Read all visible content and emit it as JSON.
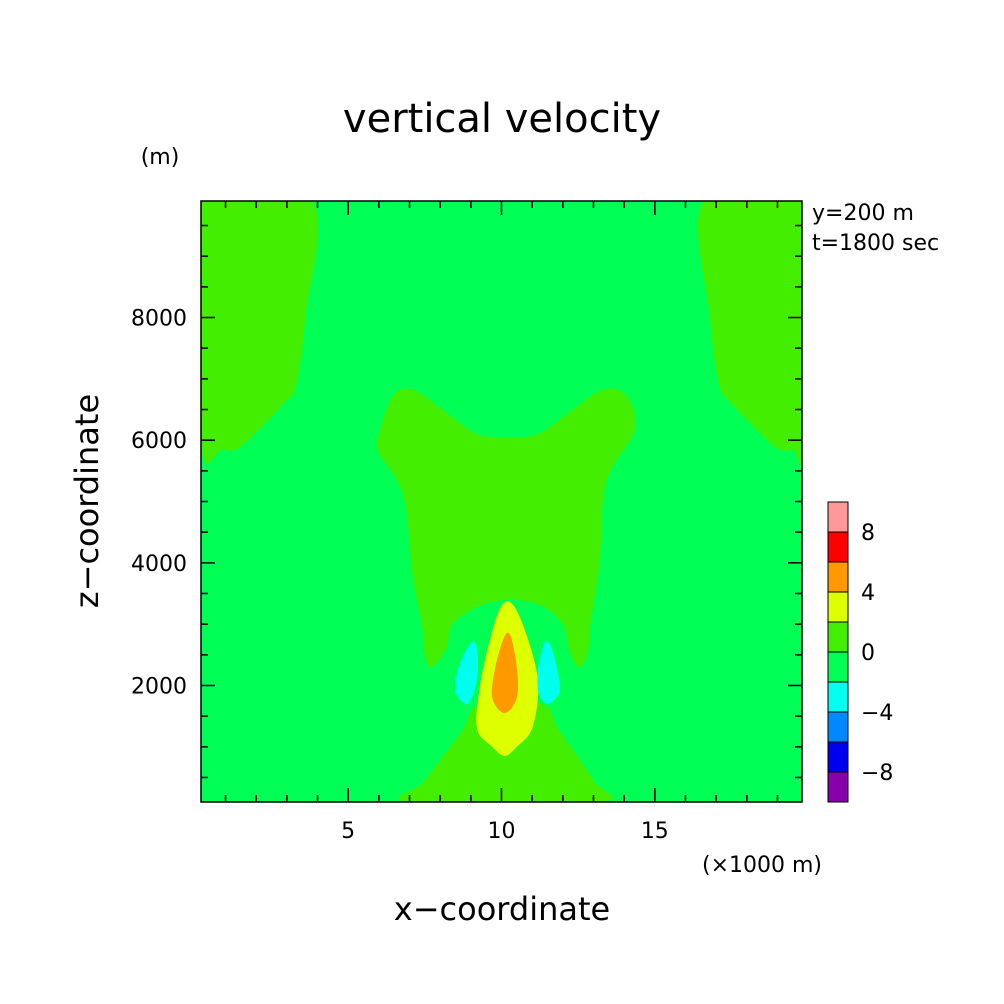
{
  "chart_data": {
    "type": "filled-contour",
    "title": "vertical velocity",
    "xlabel": "x−coordinate",
    "ylabel": "z−coordinate",
    "x_unit": "(×1000 m)",
    "y_unit": "(m)",
    "info_lines": [
      "y=200 m",
      "t=1800 sec"
    ],
    "xlim": [
      0.2,
      19.8
    ],
    "ylim": [
      100,
      9900
    ],
    "x_ticks": [
      {
        "value": 5,
        "label": "5"
      },
      {
        "value": 10,
        "label": "10"
      },
      {
        "value": 15,
        "label": "15"
      }
    ],
    "y_ticks": [
      {
        "value": 2000,
        "label": "2000"
      },
      {
        "value": 4000,
        "label": "4000"
      },
      {
        "value": 6000,
        "label": "6000"
      },
      {
        "value": 8000,
        "label": "8000"
      }
    ],
    "colorbar": {
      "levels": [
        -10,
        -8,
        -6,
        -4,
        -2,
        0,
        2,
        4,
        6,
        8,
        10
      ],
      "colors": [
        "#8800aa",
        "#0000ee",
        "#0088ff",
        "#00ffee",
        "#00ff55",
        "#44ee00",
        "#ddff00",
        "#ff9900",
        "#ff0000",
        "#ff9999"
      ],
      "labels": [
        {
          "value": 8,
          "label": "8"
        },
        {
          "value": 4,
          "label": "4"
        },
        {
          "value": 0,
          "label": "0"
        },
        {
          "value": -4,
          "label": "−4"
        },
        {
          "value": -8,
          "label": "−8"
        }
      ]
    },
    "contour_regions": [
      {
        "name": "background",
        "level": "-2 to 0",
        "color": "#00ff55",
        "rect": true
      },
      {
        "name": "upper-left-lobe",
        "level": "0 to 2",
        "color": "#44ee00",
        "points": [
          [
            0.2,
            9900
          ],
          [
            3.8,
            9900
          ],
          [
            3.6,
            8000
          ],
          [
            3.3,
            6900
          ],
          [
            2.9,
            6600
          ],
          [
            1.5,
            5900
          ],
          [
            0.9,
            5850
          ],
          [
            0.2,
            5950
          ]
        ]
      },
      {
        "name": "upper-right-lobe",
        "level": "0 to 2",
        "color": "#44ee00",
        "points": [
          [
            19.8,
            9900
          ],
          [
            16.6,
            9900
          ],
          [
            16.8,
            8000
          ],
          [
            17.1,
            6900
          ],
          [
            17.5,
            6600
          ],
          [
            18.9,
            5900
          ],
          [
            19.5,
            5850
          ],
          [
            19.8,
            5950
          ]
        ]
      },
      {
        "name": "central-plume",
        "level": "0 to 2",
        "color": "#44ee00",
        "points": [
          [
            6.0,
            6100
          ],
          [
            6.5,
            6750
          ],
          [
            7.2,
            6800
          ],
          [
            8.2,
            6450
          ],
          [
            9.2,
            6100
          ],
          [
            10.2,
            6050
          ],
          [
            11.2,
            6100
          ],
          [
            12.2,
            6450
          ],
          [
            13.2,
            6800
          ],
          [
            13.9,
            6800
          ],
          [
            14.3,
            6500
          ],
          [
            14.3,
            6100
          ],
          [
            13.4,
            5300
          ],
          [
            13.2,
            4000
          ],
          [
            12.9,
            3000
          ],
          [
            12.8,
            2500
          ],
          [
            12.5,
            2300
          ],
          [
            12.2,
            2600
          ],
          [
            12.0,
            3000
          ],
          [
            11.3,
            3300
          ],
          [
            10.3,
            3400
          ],
          [
            9.3,
            3300
          ],
          [
            8.4,
            3000
          ],
          [
            8.2,
            2600
          ],
          [
            7.7,
            2300
          ],
          [
            7.5,
            2500
          ],
          [
            7.4,
            3000
          ],
          [
            7.1,
            3800
          ],
          [
            6.8,
            5100
          ],
          [
            6.0,
            5800
          ]
        ]
      },
      {
        "name": "bottom-plume",
        "level": "0 to 2",
        "color": "#44ee00",
        "points": [
          [
            7.0,
            100
          ],
          [
            7.5,
            450
          ],
          [
            8.7,
            1250
          ],
          [
            9.3,
            1700
          ],
          [
            11.3,
            1700
          ],
          [
            11.9,
            1250
          ],
          [
            13.0,
            450
          ],
          [
            13.2,
            100
          ]
        ]
      },
      {
        "name": "plume-core",
        "level": "2 to 4",
        "color": "#ddff00",
        "points": [
          [
            10.0,
            3300
          ],
          [
            9.6,
            2700
          ],
          [
            9.3,
            2000
          ],
          [
            9.2,
            1300
          ],
          [
            9.7,
            1000
          ],
          [
            10.1,
            850
          ],
          [
            10.5,
            1000
          ],
          [
            11.0,
            1300
          ],
          [
            11.2,
            2000
          ],
          [
            10.9,
            2700
          ],
          [
            10.4,
            3300
          ]
        ]
      },
      {
        "name": "plume-max",
        "level": "4 to 6",
        "color": "#ff9900",
        "points": [
          [
            10.1,
            2800
          ],
          [
            9.8,
            2300
          ],
          [
            9.7,
            1800
          ],
          [
            10.1,
            1550
          ],
          [
            10.5,
            1800
          ],
          [
            10.5,
            2300
          ],
          [
            10.3,
            2800
          ]
        ]
      },
      {
        "name": "left-downdraft",
        "level": "-4 to -2",
        "color": "#00ffee",
        "points": [
          [
            9.0,
            2700
          ],
          [
            8.6,
            2300
          ],
          [
            8.5,
            1900
          ],
          [
            8.9,
            1700
          ],
          [
            9.2,
            2100
          ],
          [
            9.2,
            2600
          ]
        ]
      },
      {
        "name": "right-downdraft",
        "level": "-4 to -2",
        "color": "#00ffee",
        "points": [
          [
            11.4,
            2700
          ],
          [
            11.2,
            2300
          ],
          [
            11.2,
            1900
          ],
          [
            11.5,
            1700
          ],
          [
            11.9,
            1900
          ],
          [
            11.8,
            2300
          ],
          [
            11.6,
            2650
          ]
        ]
      }
    ]
  }
}
